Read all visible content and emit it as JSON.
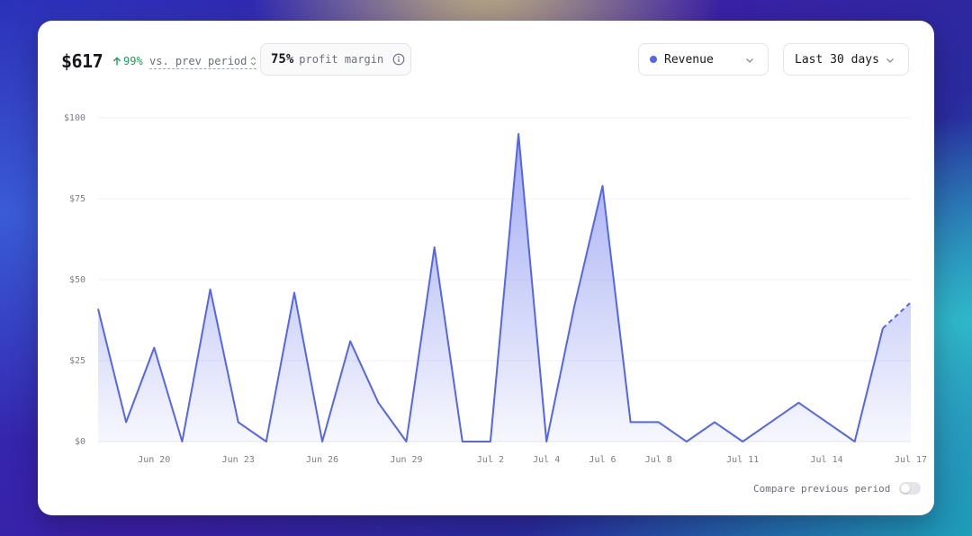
{
  "header": {
    "metric_value": "$617",
    "change_pct": "99%",
    "prev_label": "vs. prev period",
    "margin_value": "75%",
    "margin_label": "profit margin",
    "series_select": "Revenue",
    "range_select": "Last 30 days"
  },
  "footer": {
    "compare_label": "Compare previous period",
    "compare_enabled": false
  },
  "colors": {
    "series": "#5566e8",
    "positive": "#1f9d5b"
  },
  "chart_data": {
    "type": "area",
    "series": [
      {
        "name": "Revenue",
        "values": [
          41,
          6,
          29,
          0,
          47,
          6,
          0,
          46,
          0,
          31,
          12,
          0,
          60,
          0,
          0,
          95,
          0,
          42,
          79,
          6,
          6,
          0,
          6,
          0,
          6,
          12,
          6,
          0,
          35,
          43
        ]
      }
    ],
    "projected_last": true,
    "x_tick_labels": [
      "Jun 20",
      "Jun 23",
      "Jun 26",
      "Jun 29",
      "Jul 2",
      "Jul 4",
      "Jul 6",
      "Jul 8",
      "Jul 11",
      "Jul 14",
      "Jul 17"
    ],
    "x_tick_index": [
      2,
      5,
      8,
      11,
      14,
      16,
      18,
      20,
      23,
      26,
      29
    ],
    "y_ticks": [
      0,
      25,
      50,
      75,
      100
    ],
    "y_tick_labels": [
      "$0",
      "$25",
      "$50",
      "$75",
      "$100"
    ],
    "ylim": [
      0,
      100
    ],
    "grid": true
  }
}
